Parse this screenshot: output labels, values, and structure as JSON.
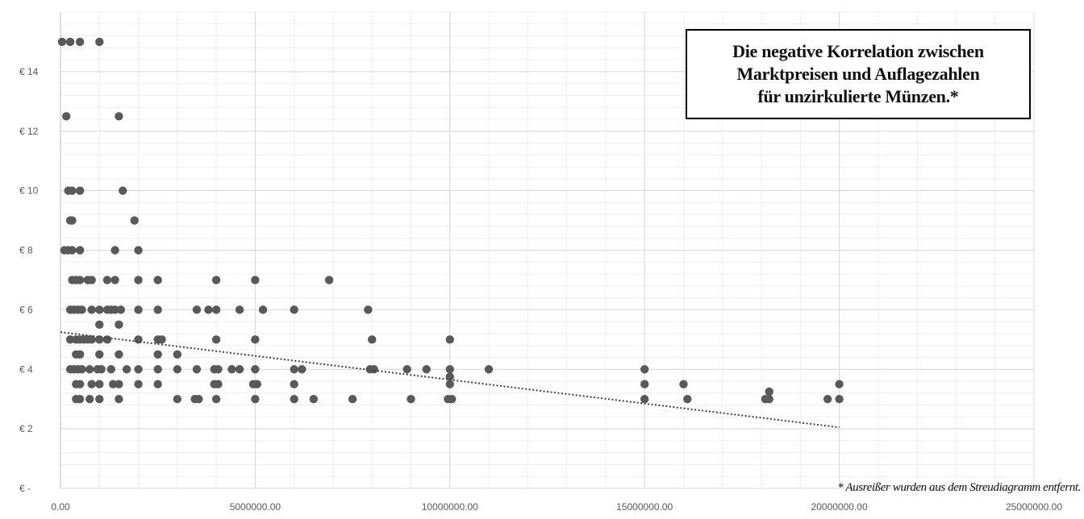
{
  "chart_data": {
    "type": "scatter",
    "title": "Die negative Korrelation zwischen\nMarktpreisen und Auflagezahlen\nfür unzirkulierte Münzen.*",
    "footnote": "* Ausreißer wurden aus dem Streudiagramm entfernt.",
    "xlim": [
      0,
      25000000
    ],
    "ylim": [
      0,
      16
    ],
    "x_ticks": [
      0,
      5000000,
      10000000,
      15000000,
      20000000,
      25000000
    ],
    "x_tick_labels": [
      "0.00",
      "5000000.00",
      "10000000.00",
      "15000000.00",
      "20000000.00",
      "25000000.00"
    ],
    "y_ticks": [
      0,
      2,
      4,
      6,
      8,
      10,
      12,
      14
    ],
    "y_tick_labels": [
      "€ -",
      "€ 2",
      "€ 4",
      "€ 6",
      "€ 8",
      "€ 10",
      "€ 12",
      "€ 14"
    ],
    "grid": true,
    "trendline": {
      "style": "dotted",
      "x": [
        0,
        20000000
      ],
      "y": [
        5.25,
        2.05
      ]
    },
    "marker_color": "#595959",
    "points": [
      [
        40000,
        15
      ],
      [
        250000,
        15
      ],
      [
        500000,
        15
      ],
      [
        1000000,
        15
      ],
      [
        150000,
        12.5
      ],
      [
        1500000,
        12.5
      ],
      [
        200000,
        10
      ],
      [
        300000,
        10
      ],
      [
        500000,
        10
      ],
      [
        1600000,
        10
      ],
      [
        250000,
        9
      ],
      [
        300000,
        9
      ],
      [
        1900000,
        9
      ],
      [
        100000,
        8
      ],
      [
        200000,
        8
      ],
      [
        300000,
        8
      ],
      [
        500000,
        8
      ],
      [
        1400000,
        8
      ],
      [
        2000000,
        8
      ],
      [
        300000,
        7
      ],
      [
        400000,
        7
      ],
      [
        500000,
        7
      ],
      [
        700000,
        7
      ],
      [
        800000,
        7
      ],
      [
        1200000,
        7
      ],
      [
        1400000,
        7
      ],
      [
        2000000,
        7
      ],
      [
        2500000,
        7
      ],
      [
        4000000,
        7
      ],
      [
        5000000,
        7
      ],
      [
        6900000,
        7
      ],
      [
        250000,
        6
      ],
      [
        350000,
        6
      ],
      [
        450000,
        6
      ],
      [
        550000,
        6
      ],
      [
        800000,
        6
      ],
      [
        1000000,
        6
      ],
      [
        1200000,
        6
      ],
      [
        1300000,
        6
      ],
      [
        1400000,
        6
      ],
      [
        1550000,
        6
      ],
      [
        2000000,
        6
      ],
      [
        2500000,
        6
      ],
      [
        3500000,
        6
      ],
      [
        3800000,
        6
      ],
      [
        4000000,
        6
      ],
      [
        4600000,
        6
      ],
      [
        5200000,
        6
      ],
      [
        6000000,
        6
      ],
      [
        7900000,
        6
      ],
      [
        1000000,
        5.5
      ],
      [
        1500000,
        5.5
      ],
      [
        250000,
        5
      ],
      [
        400000,
        5
      ],
      [
        500000,
        5
      ],
      [
        600000,
        5
      ],
      [
        700000,
        5
      ],
      [
        800000,
        5
      ],
      [
        1000000,
        5
      ],
      [
        1200000,
        5
      ],
      [
        2000000,
        5
      ],
      [
        2500000,
        5
      ],
      [
        2600000,
        5
      ],
      [
        4000000,
        5
      ],
      [
        5000000,
        5
      ],
      [
        8000000,
        5
      ],
      [
        10000000,
        5
      ],
      [
        400000,
        4.5
      ],
      [
        500000,
        4.5
      ],
      [
        1000000,
        4.5
      ],
      [
        1500000,
        4.5
      ],
      [
        2500000,
        4.5
      ],
      [
        3000000,
        4.5
      ],
      [
        250000,
        4
      ],
      [
        350000,
        4
      ],
      [
        450000,
        4
      ],
      [
        550000,
        4
      ],
      [
        750000,
        4
      ],
      [
        950000,
        4
      ],
      [
        1050000,
        4
      ],
      [
        1300000,
        4
      ],
      [
        1700000,
        4
      ],
      [
        2000000,
        4
      ],
      [
        2500000,
        4
      ],
      [
        3000000,
        4
      ],
      [
        3500000,
        4
      ],
      [
        3950000,
        4
      ],
      [
        4050000,
        4
      ],
      [
        4400000,
        4
      ],
      [
        4600000,
        4
      ],
      [
        5000000,
        4
      ],
      [
        6000000,
        4
      ],
      [
        6200000,
        4
      ],
      [
        7950000,
        4
      ],
      [
        8050000,
        4
      ],
      [
        8900000,
        4
      ],
      [
        9400000,
        4
      ],
      [
        10000000,
        4
      ],
      [
        11000000,
        4
      ],
      [
        15000000,
        4
      ],
      [
        10000000,
        3.75
      ],
      [
        400000,
        3.5
      ],
      [
        500000,
        3.5
      ],
      [
        800000,
        3.5
      ],
      [
        1000000,
        3.5
      ],
      [
        1350000,
        3.5
      ],
      [
        1500000,
        3.5
      ],
      [
        2000000,
        3.5
      ],
      [
        2500000,
        3.5
      ],
      [
        3950000,
        3.5
      ],
      [
        4050000,
        3.5
      ],
      [
        4950000,
        3.5
      ],
      [
        5050000,
        3.5
      ],
      [
        6000000,
        3.5
      ],
      [
        10000000,
        3.5
      ],
      [
        15000000,
        3.5
      ],
      [
        16000000,
        3.5
      ],
      [
        20000000,
        3.5
      ],
      [
        18200000,
        3.25
      ],
      [
        400000,
        3
      ],
      [
        500000,
        3
      ],
      [
        750000,
        3
      ],
      [
        1000000,
        3
      ],
      [
        1500000,
        3
      ],
      [
        3000000,
        3
      ],
      [
        3450000,
        3
      ],
      [
        3550000,
        3
      ],
      [
        4000000,
        3
      ],
      [
        5000000,
        3
      ],
      [
        6000000,
        3
      ],
      [
        6500000,
        3
      ],
      [
        7500000,
        3
      ],
      [
        9000000,
        3
      ],
      [
        9950000,
        3
      ],
      [
        10050000,
        3
      ],
      [
        15000000,
        3
      ],
      [
        16100000,
        3
      ],
      [
        18100000,
        3
      ],
      [
        18200000,
        3
      ],
      [
        19700000,
        3
      ],
      [
        20000000,
        3
      ]
    ]
  }
}
